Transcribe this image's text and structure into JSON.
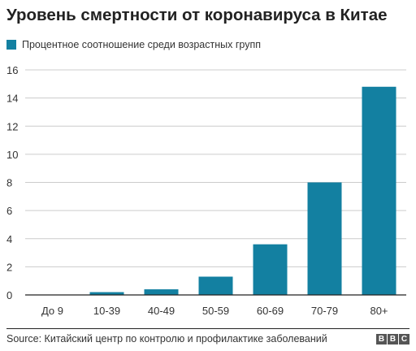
{
  "title": "Уровень смертности от коронавируса в Китае",
  "legend": {
    "label": "Процентное соотношение среди возрастных групп"
  },
  "colors": {
    "bar": "#1380a1",
    "grid": "#cccccc",
    "axis": "#222222"
  },
  "footer": {
    "source": "Source: Китайский центр по контролю и профилактике заболеваний",
    "logo": [
      "B",
      "B",
      "C"
    ]
  },
  "chart_data": {
    "type": "bar",
    "categories": [
      "До 9",
      "10-39",
      "40-49",
      "50-59",
      "60-69",
      "70-79",
      "80+"
    ],
    "values": [
      0,
      0.2,
      0.4,
      1.3,
      3.6,
      8.0,
      14.8
    ],
    "title": "Уровень смертности от коронавируса в Китае",
    "xlabel": "",
    "ylabel": "",
    "ylim": [
      0,
      16
    ],
    "yticks": [
      0,
      2,
      4,
      6,
      8,
      10,
      12,
      14,
      16
    ],
    "grid": true,
    "legend": "top-left",
    "series": [
      {
        "name": "Процентное соотношение среди возрастных групп",
        "values": [
          0,
          0.2,
          0.4,
          1.3,
          3.6,
          8.0,
          14.8
        ]
      }
    ]
  }
}
